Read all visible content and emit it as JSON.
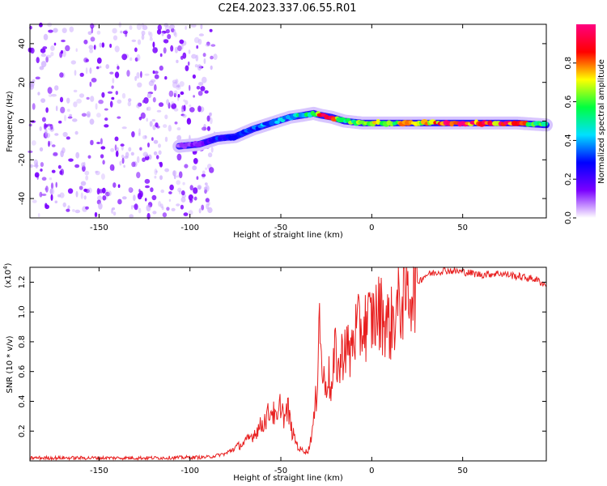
{
  "title": "C2E4.2023.337.06.55.R01",
  "chart_data": [
    {
      "type": "heatmap",
      "title": "C2E4.2023.337.06.55.R01",
      "xlabel": "Height of straight line (km)",
      "ylabel": "Frequency (Hz)",
      "xlim": [
        -188,
        96
      ],
      "ylim": [
        -50,
        50
      ],
      "xticks": [
        -150,
        -100,
        -50,
        0,
        50
      ],
      "yticks": [
        -40,
        -20,
        0,
        20,
        40
      ],
      "colorbar": {
        "label": "Normalized spectral amplitude",
        "range": [
          0.0,
          1.0
        ],
        "ticks": [
          0.0,
          0.2,
          0.4,
          0.6,
          0.8
        ],
        "colormap": [
          "#ffffff",
          "#7a00ff",
          "#0000ff",
          "#00e0ff",
          "#00ff40",
          "#ffff00",
          "#ff0000",
          "#ff0080"
        ]
      },
      "ridge": {
        "x": [
          -106,
          -95,
          -85,
          -75,
          -65,
          -55,
          -45,
          -38,
          -32,
          -28,
          -22,
          -15,
          -5,
          5,
          20,
          40,
          60,
          80,
          96
        ],
        "frequency": [
          -13,
          -12,
          -9,
          -8,
          -4,
          -1,
          2,
          3,
          4,
          3,
          2,
          0,
          -1,
          -1,
          -1,
          -1,
          -1,
          -1,
          -2
        ],
        "amplitude": [
          0.1,
          0.15,
          0.3,
          0.3,
          0.35,
          0.4,
          0.45,
          0.5,
          0.6,
          0.85,
          0.9,
          0.6,
          0.6,
          0.7,
          0.7,
          0.9,
          0.9,
          0.85,
          0.5
        ]
      },
      "noise_region_x": [
        -188,
        -86
      ]
    },
    {
      "type": "line",
      "xlabel": "Height of straight line (km)",
      "ylabel": "SNR (10 * v/v)",
      "y_multiplier": "(x10",
      "y_multiplier_exp": "4",
      "y_multiplier_close": ")",
      "xlim": [
        -188,
        96
      ],
      "ylim": [
        0,
        13000
      ],
      "xticks": [
        -150,
        -100,
        -50,
        0,
        50
      ],
      "yticks": [
        2000,
        4000,
        6000,
        8000,
        10000,
        12000
      ],
      "ytick_labels": [
        "0.2",
        "0.4",
        "0.6",
        "0.8",
        "1.0",
        "1.2"
      ],
      "xticklabels": [
        "-150",
        "-100",
        "-50",
        "0",
        "50"
      ],
      "color": "#e82020",
      "x": [
        -188,
        -120,
        -90,
        -80,
        -75,
        -70,
        -65,
        -60,
        -55,
        -52,
        -50,
        -48,
        -46,
        -44,
        -40,
        -35,
        -32,
        -30,
        -29,
        -28,
        -27,
        -26,
        -24,
        -22,
        -20,
        -18,
        -15,
        -12,
        -10,
        -5,
        0,
        5,
        10,
        15,
        20,
        25,
        30,
        40,
        50,
        60,
        70,
        80,
        90,
        96
      ],
      "y": [
        200,
        200,
        250,
        500,
        900,
        1200,
        1800,
        2500,
        3500,
        2500,
        4000,
        2800,
        3500,
        2000,
        800,
        600,
        2500,
        5000,
        11500,
        7000,
        6000,
        5000,
        6000,
        4500,
        7500,
        6000,
        8000,
        7000,
        8500,
        9000,
        9500,
        10000,
        9000,
        10500,
        11500,
        12000,
        12500,
        12800,
        12700,
        12500,
        12600,
        12400,
        12200,
        11800
      ]
    }
  ]
}
